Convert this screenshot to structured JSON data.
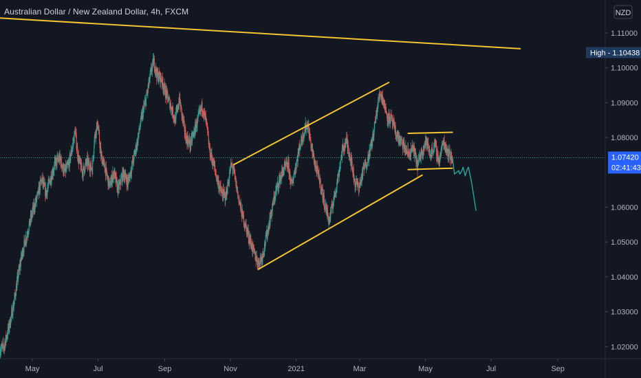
{
  "header": {
    "title": "Australian Dollar / New Zealand Dollar, 4h, FXCM",
    "currency": "NZD"
  },
  "price_badges": {
    "high_label": "High",
    "high_value": "1.10438",
    "current_value": "1.07420",
    "countdown": "02:41:43"
  },
  "colors": {
    "background": "#131722",
    "candle_up": "#26a69a",
    "candle_down": "#ef5350",
    "trendline": "#f5c430",
    "projection": "#26a69a",
    "badge": "#2962ff",
    "high_badge": "#1e3a5f"
  },
  "chart_data": {
    "type": "candlestick",
    "title": "Australian Dollar / New Zealand Dollar, 4h, FXCM",
    "y_axis": {
      "ticks": [
        "1.11000",
        "1.10000",
        "1.09000",
        "1.08000",
        "1.06000",
        "1.05000",
        "1.04000",
        "1.03000",
        "1.02000"
      ],
      "tick_values": [
        1.11,
        1.1,
        1.09,
        1.08,
        1.06,
        1.05,
        1.04,
        1.03,
        1.02
      ],
      "range": [
        1.0165,
        1.1175
      ],
      "position": "right"
    },
    "x_axis": {
      "ticks": [
        "May",
        "Jul",
        "Sep",
        "Nov",
        "2021",
        "Mar",
        "May",
        "Jul",
        "Sep"
      ],
      "tick_dates": [
        "2020-05-01",
        "2020-07-01",
        "2020-09-01",
        "2020-11-01",
        "2021-01-01",
        "2021-03-01",
        "2021-05-01",
        "2021-07-01",
        "2021-09-01"
      ],
      "range": [
        "2020-04-01",
        "2021-10-15"
      ]
    },
    "price_path": [
      [
        "2020-04-01",
        1.019
      ],
      [
        "2020-04-05",
        1.02
      ],
      [
        "2020-04-10",
        1.026
      ],
      [
        "2020-04-14",
        1.032
      ],
      [
        "2020-04-18",
        1.04
      ],
      [
        "2020-04-22",
        1.047
      ],
      [
        "2020-04-27",
        1.053
      ],
      [
        "2020-05-01",
        1.058
      ],
      [
        "2020-05-06",
        1.063
      ],
      [
        "2020-05-10",
        1.068
      ],
      [
        "2020-05-14",
        1.064
      ],
      [
        "2020-05-19",
        1.069
      ],
      [
        "2020-05-23",
        1.073
      ],
      [
        "2020-05-27",
        1.074
      ],
      [
        "2020-05-31",
        1.07
      ],
      [
        "2020-06-04",
        1.072
      ],
      [
        "2020-06-08",
        1.078
      ],
      [
        "2020-06-10",
        1.082
      ],
      [
        "2020-06-13",
        1.074
      ],
      [
        "2020-06-17",
        1.07
      ],
      [
        "2020-06-21",
        1.073
      ],
      [
        "2020-06-26",
        1.071
      ],
      [
        "2020-06-28",
        1.08
      ],
      [
        "2020-07-01",
        1.084
      ],
      [
        "2020-07-04",
        1.075
      ],
      [
        "2020-07-08",
        1.071
      ],
      [
        "2020-07-12",
        1.066
      ],
      [
        "2020-07-16",
        1.07
      ],
      [
        "2020-07-20",
        1.065
      ],
      [
        "2020-07-25",
        1.07
      ],
      [
        "2020-07-29",
        1.067
      ],
      [
        "2020-08-02",
        1.072
      ],
      [
        "2020-08-07",
        1.079
      ],
      [
        "2020-08-11",
        1.086
      ],
      [
        "2020-08-15",
        1.091
      ],
      [
        "2020-08-19",
        1.098
      ],
      [
        "2020-08-22",
        1.102
      ],
      [
        "2020-08-25",
        1.098
      ],
      [
        "2020-08-29",
        1.097
      ],
      [
        "2020-09-02",
        1.093
      ],
      [
        "2020-09-07",
        1.089
      ],
      [
        "2020-09-11",
        1.085
      ],
      [
        "2020-09-15",
        1.091
      ],
      [
        "2020-09-18",
        1.085
      ],
      [
        "2020-09-21",
        1.08
      ],
      [
        "2020-09-25",
        1.078
      ],
      [
        "2020-09-29",
        1.082
      ],
      [
        "2020-10-02",
        1.085
      ],
      [
        "2020-10-06",
        1.089
      ],
      [
        "2020-10-10",
        1.084
      ],
      [
        "2020-10-13",
        1.076
      ],
      [
        "2020-10-17",
        1.072
      ],
      [
        "2020-10-20",
        1.068
      ],
      [
        "2020-10-24",
        1.064
      ],
      [
        "2020-10-28",
        1.063
      ],
      [
        "2020-11-02",
        1.072
      ],
      [
        "2020-11-04",
        1.071
      ],
      [
        "2020-11-08",
        1.064
      ],
      [
        "2020-11-12",
        1.058
      ],
      [
        "2020-11-16",
        1.054
      ],
      [
        "2020-11-19",
        1.051
      ],
      [
        "2020-11-23",
        1.047
      ],
      [
        "2020-11-27",
        1.044
      ],
      [
        "2020-12-01",
        1.046
      ],
      [
        "2020-12-05",
        1.052
      ],
      [
        "2020-12-09",
        1.058
      ],
      [
        "2020-12-13",
        1.064
      ],
      [
        "2020-12-17",
        1.068
      ],
      [
        "2020-12-21",
        1.071
      ],
      [
        "2020-12-25",
        1.072
      ],
      [
        "2020-12-28",
        1.066
      ],
      [
        "2021-01-01",
        1.072
      ],
      [
        "2021-01-05",
        1.078
      ],
      [
        "2021-01-09",
        1.082
      ],
      [
        "2021-01-12",
        1.084
      ],
      [
        "2021-01-15",
        1.078
      ],
      [
        "2021-01-19",
        1.072
      ],
      [
        "2021-01-23",
        1.068
      ],
      [
        "2021-01-27",
        1.062
      ],
      [
        "2021-02-01",
        1.056
      ],
      [
        "2021-02-05",
        1.062
      ],
      [
        "2021-02-09",
        1.068
      ],
      [
        "2021-02-13",
        1.076
      ],
      [
        "2021-02-17",
        1.079
      ],
      [
        "2021-02-21",
        1.074
      ],
      [
        "2021-02-25",
        1.067
      ],
      [
        "2021-03-01",
        1.066
      ],
      [
        "2021-03-05",
        1.071
      ],
      [
        "2021-03-09",
        1.074
      ],
      [
        "2021-03-13",
        1.079
      ],
      [
        "2021-03-17",
        1.087
      ],
      [
        "2021-03-20",
        1.093
      ],
      [
        "2021-03-23",
        1.091
      ],
      [
        "2021-03-27",
        1.086
      ],
      [
        "2021-03-31",
        1.085
      ],
      [
        "2021-04-04",
        1.081
      ],
      [
        "2021-04-08",
        1.079
      ],
      [
        "2021-04-12",
        1.077
      ],
      [
        "2021-04-16",
        1.075
      ],
      [
        "2021-04-20",
        1.077
      ],
      [
        "2021-04-24",
        1.072
      ],
      [
        "2021-04-28",
        1.076
      ],
      [
        "2021-05-02",
        1.079
      ],
      [
        "2021-05-06",
        1.075
      ],
      [
        "2021-05-10",
        1.078
      ],
      [
        "2021-05-14",
        1.073
      ],
      [
        "2021-05-18",
        1.079
      ],
      [
        "2021-05-22",
        1.076
      ],
      [
        "2021-05-26",
        1.074
      ]
    ],
    "projection": [
      [
        "2021-05-26",
        1.0745
      ],
      [
        "2021-05-28",
        1.0695
      ],
      [
        "2021-05-30",
        1.07
      ],
      [
        "2021-06-01",
        1.0705
      ],
      [
        "2021-06-02",
        1.0695
      ],
      [
        "2021-06-04",
        1.0705
      ],
      [
        "2021-06-05",
        1.0715
      ],
      [
        "2021-06-07",
        1.069
      ],
      [
        "2021-06-09",
        1.071
      ],
      [
        "2021-06-10",
        1.0715
      ],
      [
        "2021-06-13",
        1.067
      ],
      [
        "2021-06-17",
        1.059
      ]
    ],
    "annotations": [
      {
        "type": "trendline",
        "from": [
          "2020-03-15",
          1.1146
        ],
        "to": [
          "2021-07-28",
          1.1055
        ]
      },
      {
        "type": "trendline",
        "from": [
          "2020-11-04",
          1.0722
        ],
        "to": [
          "2021-03-28",
          1.0958
        ]
      },
      {
        "type": "trendline",
        "from": [
          "2020-11-27",
          1.0422
        ],
        "to": [
          "2021-04-28",
          1.0692
        ]
      },
      {
        "type": "trendline",
        "from": [
          "2021-04-15",
          1.0812
        ],
        "to": [
          "2021-05-26",
          1.0815
        ]
      },
      {
        "type": "trendline",
        "from": [
          "2021-04-15",
          1.0708
        ],
        "to": [
          "2021-05-26",
          1.0712
        ]
      }
    ],
    "high_level": 1.10438,
    "current_level": 1.0742
  }
}
